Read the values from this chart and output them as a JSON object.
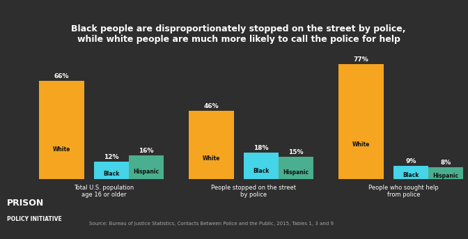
{
  "title_line1": "Black people are disproportionately stopped on the street by police,",
  "title_line2": "while white people are much more likely to call the police for help",
  "background_color": "#2e2e2e",
  "text_color": "#ffffff",
  "groups": [
    {
      "label": "Total U.S. population\nage 16 or older",
      "white_val": 66,
      "black_val": 12,
      "hispanic_val": 16,
      "white_label": "White",
      "black_label": "Black",
      "hispanic_label": "Hispanic"
    },
    {
      "label": "People stopped on the street\nby police",
      "white_val": 46,
      "black_val": 18,
      "hispanic_val": 15,
      "white_label": "White",
      "black_label": "Black",
      "hispanic_label": "Hispanic"
    },
    {
      "label": "People who sought help\nfrom police",
      "white_val": 77,
      "black_val": 9,
      "hispanic_val": 8,
      "white_label": "White",
      "black_label": "Black",
      "hispanic_label": "Hispanic"
    }
  ],
  "white_color": "#f5a520",
  "black_color": "#45d4e8",
  "hispanic_color": "#4aaf8e",
  "source_text": "Source: Bureau of Justice Statistics, Contacts Between Police and the Public, 2015, Tables 1, 3 and 9",
  "logo_line1": "PRISON",
  "logo_line2": "POLICY INITIATIVE",
  "ylim": [
    0,
    88
  ]
}
